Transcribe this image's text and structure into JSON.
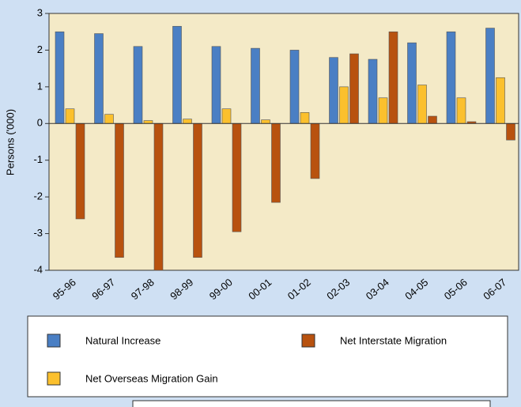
{
  "chart_data": {
    "type": "bar",
    "y_label": "Persons ('000)",
    "categories": [
      "95-96",
      "96-97",
      "97-98",
      "98-99",
      "99-00",
      "00-01",
      "01-02",
      "02-03",
      "03-04",
      "04-05",
      "05-06",
      "06-07"
    ],
    "series": [
      {
        "name": "Natural Increase",
        "color": "#4a7fc4",
        "values": [
          2.5,
          2.45,
          2.1,
          2.65,
          2.1,
          2.05,
          2.0,
          1.8,
          1.75,
          2.2,
          2.5,
          2.6
        ]
      },
      {
        "name": "Net Overseas Migration Gain",
        "color": "#fbc02d",
        "values": [
          0.4,
          0.25,
          0.08,
          0.12,
          0.4,
          0.1,
          0.3,
          1.0,
          0.7,
          1.05,
          0.7,
          1.25
        ]
      },
      {
        "name": "Net Interstate Migration",
        "color": "#b8520f",
        "values": [
          -2.6,
          -3.65,
          -4.0,
          -3.65,
          -2.95,
          -2.15,
          -1.5,
          1.9,
          2.5,
          0.2,
          0.05,
          -0.45
        ]
      }
    ],
    "ylim": [
      -4,
      3
    ],
    "yticks": [
      -4,
      -3,
      -2,
      -1,
      0,
      1,
      2,
      3
    ]
  }
}
